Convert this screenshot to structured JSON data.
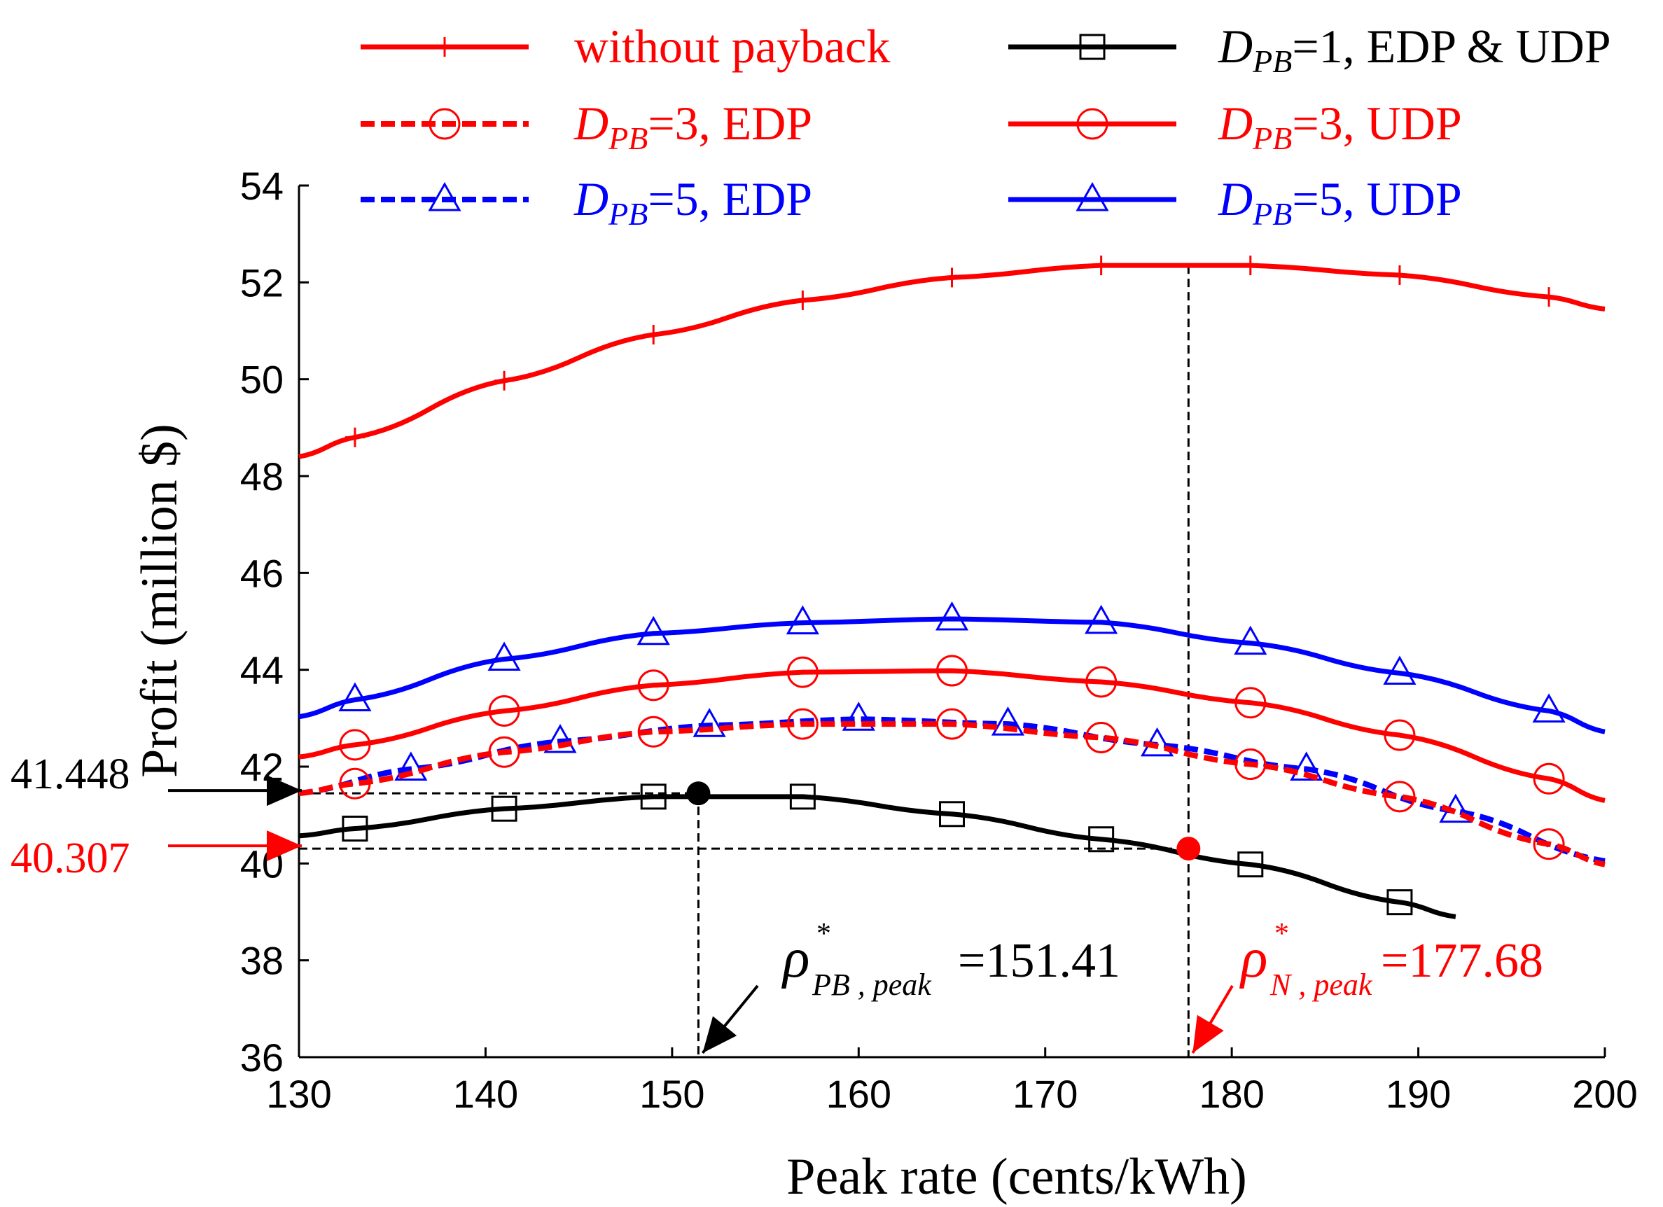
{
  "chart_data": {
    "type": "line",
    "xlabel": "Peak rate (cents/kWh)",
    "ylabel": "Profit (million $)",
    "xlim": [
      130,
      200
    ],
    "ylim": [
      36,
      54
    ],
    "x_ticks": [
      130,
      140,
      150,
      160,
      170,
      180,
      190,
      200
    ],
    "y_ticks": [
      36,
      38,
      40,
      42,
      44,
      46,
      48,
      50,
      52,
      54
    ],
    "series": [
      {
        "name": "without payback",
        "legend_sub": "",
        "legend_value": "without payback",
        "color": "#ff0000",
        "dash": "solid",
        "marker": "plus",
        "x": [
          130,
          133,
          141,
          149,
          157,
          165,
          173,
          181,
          189,
          197,
          200
        ],
        "values": [
          48.4,
          48.8,
          49.97,
          50.92,
          51.63,
          52.1,
          52.35,
          52.35,
          52.15,
          51.7,
          51.45
        ]
      },
      {
        "name": "D_PB=1, EDP & UDP",
        "legend_sub": "PB",
        "legend_value": "=1, EDP & UDP",
        "color": "#000000",
        "dash": "solid",
        "marker": "square",
        "x": [
          130,
          133,
          141,
          149,
          157,
          165,
          173,
          181,
          189,
          192
        ],
        "values": [
          40.57,
          40.72,
          41.13,
          41.38,
          41.38,
          41.02,
          40.5,
          39.98,
          39.2,
          38.9
        ]
      },
      {
        "name": "D_PB=3, EDP",
        "legend_sub": "PB",
        "legend_value": "=3, EDP",
        "color": "#ff0000",
        "dash": "dashed",
        "marker": "circle",
        "x": [
          130,
          133,
          141,
          149,
          157,
          165,
          173,
          181,
          189,
          197,
          200
        ],
        "values": [
          41.45,
          41.65,
          42.3,
          42.72,
          42.88,
          42.88,
          42.6,
          42.05,
          41.38,
          40.4,
          39.98
        ]
      },
      {
        "name": "D_PB=3, UDP",
        "legend_sub": "PB",
        "legend_value": "=3, UDP",
        "color": "#ff0000",
        "dash": "solid",
        "marker": "circle",
        "x": [
          130,
          133,
          141,
          149,
          157,
          165,
          173,
          181,
          189,
          197,
          200
        ],
        "values": [
          42.2,
          42.45,
          43.15,
          43.68,
          43.95,
          43.98,
          43.75,
          43.32,
          42.65,
          41.75,
          41.3
        ]
      },
      {
        "name": "D_PB=5, EDP",
        "legend_sub": "PB",
        "legend_value": "=5, EDP",
        "color": "#0000ff",
        "dash": "dashed",
        "marker": "triangle",
        "x": [
          130,
          136,
          144,
          152,
          160,
          168,
          176,
          184,
          192,
          200
        ],
        "values": [
          41.45,
          41.95,
          42.52,
          42.85,
          42.98,
          42.88,
          42.45,
          41.95,
          41.08,
          40.05
        ]
      },
      {
        "name": "D_PB=5, UDP",
        "legend_sub": "PB",
        "legend_value": "=5, UDP",
        "color": "#0000ff",
        "dash": "solid",
        "marker": "triangle",
        "x": [
          130,
          133,
          141,
          149,
          157,
          165,
          173,
          181,
          189,
          197,
          200
        ],
        "values": [
          43.03,
          43.38,
          44.22,
          44.75,
          44.97,
          45.05,
          44.98,
          44.55,
          43.93,
          43.15,
          42.72
        ]
      }
    ],
    "legend_symbol": "D",
    "annotations": {
      "y_callout_black": {
        "label": "41.448",
        "y": 41.448,
        "color": "#000000"
      },
      "y_callout_red": {
        "label": "40.307",
        "y": 40.307,
        "color": "#ff0000"
      },
      "opt_black": {
        "symbol": "ρ",
        "sup": "*",
        "sub": "PB , peak",
        "value": "=151.41",
        "x": 151.41,
        "y": 41.448,
        "color": "#000000"
      },
      "opt_red": {
        "symbol": "ρ",
        "sup": "*",
        "sub": "N , peak",
        "value": "=177.68",
        "x": 177.68,
        "y": 40.307,
        "color": "#ff0000"
      },
      "no_payback_peak": {
        "x": 177.68,
        "y": 52.35
      }
    }
  }
}
